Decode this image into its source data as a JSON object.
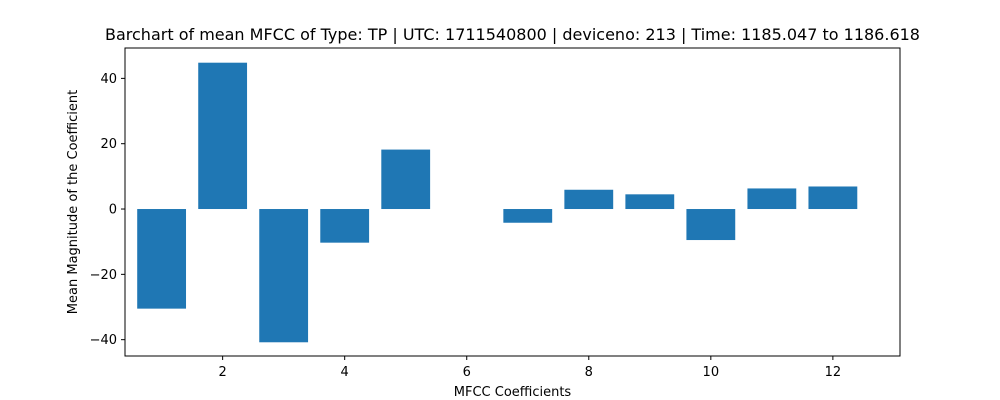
{
  "chart_data": {
    "type": "bar",
    "title": "Barchart of mean MFCC of Type: TP | UTC: 1711540800 | deviceno: 213 | Time: 1185.047 to 1186.618",
    "xlabel": "MFCC Coefficients",
    "ylabel": "Mean Magnitude of the Coefficient",
    "x": [
      1,
      2,
      3,
      4,
      5,
      6,
      7,
      8,
      9,
      10,
      11,
      12
    ],
    "values": [
      -30.5,
      44.8,
      -40.8,
      -10.3,
      18.2,
      0.0,
      -4.2,
      5.9,
      4.5,
      -9.5,
      6.3,
      6.9
    ],
    "xlim": [
      0.4,
      13.1
    ],
    "ylim": [
      -45,
      49.3
    ],
    "xticks": [
      2,
      4,
      6,
      8,
      10,
      12
    ],
    "yticks": [
      -40,
      -20,
      0,
      20,
      40
    ],
    "bar_color": "#1f77b4",
    "grid": false,
    "legend": "none"
  }
}
